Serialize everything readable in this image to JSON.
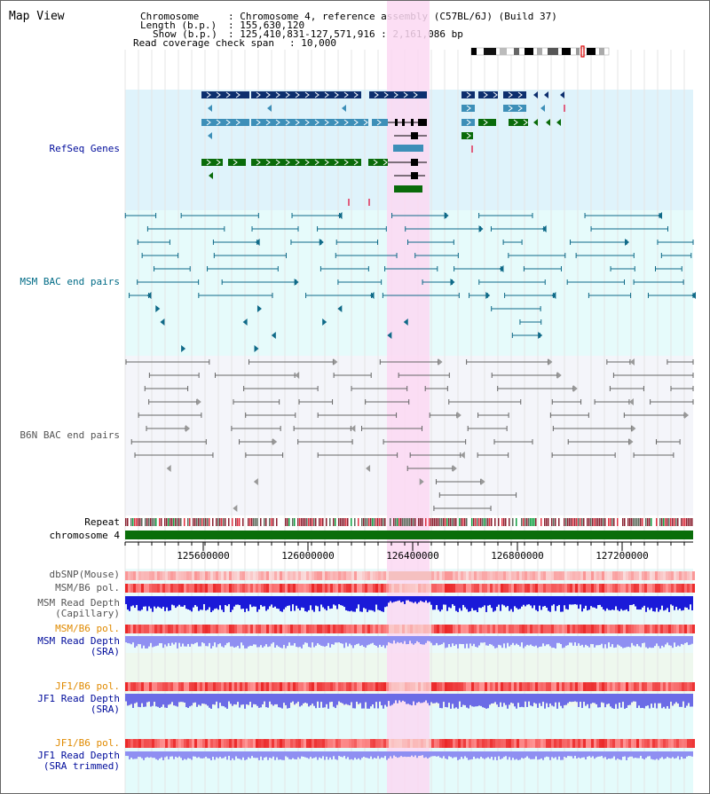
{
  "title": "Map View",
  "header": {
    "chromosome_label": "Chromosome",
    "chromosome_value": ": Chromosome 4, reference assembly (C57BL/6J) (Build 37)",
    "length_label": "Length (b.p.)",
    "length_value": ": 155,630,120",
    "show_label": "Show (b.p.)",
    "show_value": ": 125,410,831-127,571,916 : 2,161,086 bp",
    "span_label": "Read coverage check span",
    "span_value": ": 10,000"
  },
  "tracks": {
    "refseq": "RefSeq Genes",
    "msm_bac": "MSM BAC end pairs",
    "b6n_bac": "B6N BAC end pairs",
    "repeat": "Repeat",
    "chromosome": "chromosome 4",
    "dbsnp": "dbSNP(Mouse)",
    "msm_b6_pol_1": "MSM/B6 pol.",
    "msm_depth_cap_1": "MSM Read Depth",
    "msm_depth_cap_2": "(Capillary)",
    "msm_b6_pol_2": "MSM/B6 pol.",
    "msm_depth_sra_1": "MSM Read Depth",
    "msm_depth_sra_2": "(SRA)",
    "jf1_b6_pol_1": "JF1/B6 pol.",
    "jf1_depth_sra_1": "JF1 Read Depth",
    "jf1_depth_sra_2": "(SRA)",
    "jf1_b6_pol_2": "JF1/B6 pol.",
    "jf1_depth_trim_1": "JF1 Read Depth",
    "jf1_depth_trim_2": "(SRA trimmed)"
  },
  "axis": {
    "ticks": [
      "125600000",
      "126000000",
      "126400000",
      "126800000",
      "127200000"
    ]
  },
  "colors": {
    "refseq_bg": "#dff3fb",
    "msm_bg": "#e6fbfb",
    "b6n_bg": "#f4f5fa",
    "highlight": "#fcd8f2",
    "dark_gene": "#0d2f6e",
    "mid_gene": "#3d8fb8",
    "green_gene": "#0a6b0a",
    "msm_line": "#0f6a88",
    "b6n_line": "#666666",
    "chromosome_bar": "#0a6e0a",
    "label_blue": "#000c9b",
    "label_teal": "#006b86",
    "label_gray": "#555555",
    "label_orange": "#e08a00"
  }
}
